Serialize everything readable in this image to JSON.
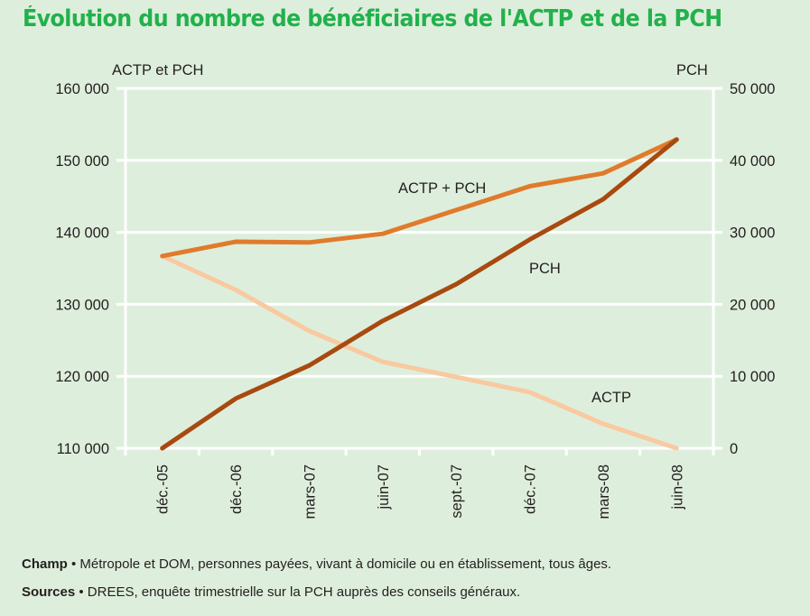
{
  "title": "Évolution du nombre de bénéficiaires de l'ACTP et de la PCH",
  "footer": {
    "champ_label": "Champ",
    "champ_text": " • Métropole et DOM, personnes payées, vivant à domicile ou en établissement, tous âges.",
    "sources_label": "Sources",
    "sources_text": " • DREES, enquête trimestrielle sur la PCH auprès des conseils généraux."
  },
  "colors": {
    "background": "#deeedc",
    "title": "#22b14c",
    "grid": "#ffffff",
    "actp_pch": "#e07b2c",
    "pch": "#a84a10",
    "actp": "#f9c9a0"
  },
  "chart_data": {
    "type": "line",
    "title": "Évolution du nombre de bénéficiaires de l'ACTP et de la PCH",
    "xlabel": "",
    "ylabel": "ACTP et PCH",
    "y2label": "PCH",
    "categories": [
      "déc.-05",
      "déc.-06",
      "mars-07",
      "juin-07",
      "sept.-07",
      "déc.-07",
      "mars-08",
      "juin-08"
    ],
    "ylim": [
      110000,
      160000
    ],
    "y2lim": [
      0,
      50000
    ],
    "yticks": [
      "110 000",
      "120 000",
      "130 000",
      "140 000",
      "150 000",
      "160 000"
    ],
    "y2ticks": [
      "0",
      "10 000",
      "20 000",
      "30 000",
      "40 000",
      "50 000"
    ],
    "grid": true,
    "series": [
      {
        "name": "ACTP + PCH",
        "axis": "left",
        "label": "ACTP + PCH",
        "values": [
          136700,
          138700,
          138600,
          139800,
          143100,
          146400,
          148200,
          152900
        ]
      },
      {
        "name": "PCH",
        "axis": "right",
        "label": "PCH",
        "values": [
          0,
          6900,
          11500,
          17700,
          22800,
          29000,
          34600,
          42900
        ]
      },
      {
        "name": "ACTP",
        "axis": "left",
        "label": "ACTP",
        "values": [
          136700,
          132000,
          126300,
          122000,
          119900,
          117800,
          113400,
          110000
        ]
      }
    ]
  }
}
